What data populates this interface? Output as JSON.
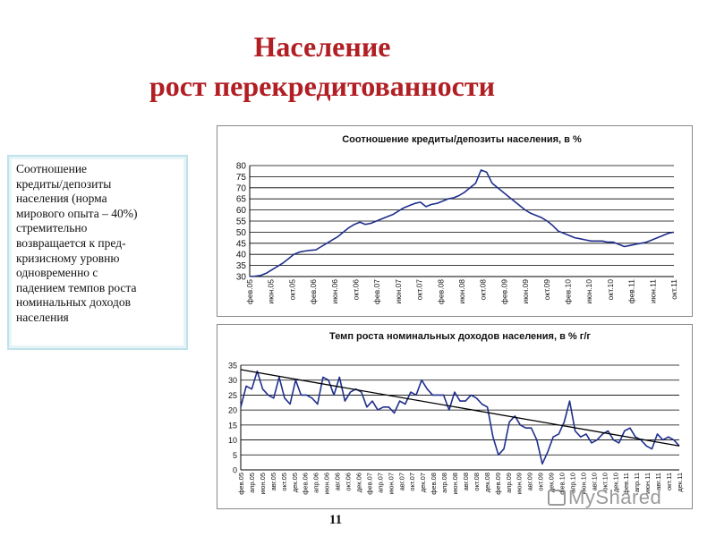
{
  "header": {
    "title_line1": "Население",
    "title_line2": "рост перекредитованности"
  },
  "textbox": {
    "text": "Соотношение\nкредиты/депозиты\nнаселения (норма\nмирового опыта – 40%)\nстремительно\nвозвращается к пред-\nкризисному уровню\nодновременно с\nпадением темпов роста\nноминальных доходов\nнаселения"
  },
  "footer": {
    "page_number": "11",
    "watermark": "MyShared"
  },
  "colors": {
    "title": "#b11f24",
    "series": "#1f2f8c",
    "trend": "#000000",
    "grid": "#000000"
  },
  "chart_data": [
    {
      "type": "line",
      "title": "Соотношение кредиты/депозиты населения, в %",
      "ylim": [
        30,
        80
      ],
      "yticks": [
        30,
        35,
        40,
        45,
        50,
        55,
        60,
        65,
        70,
        75,
        80
      ],
      "grid": "horizontal",
      "x_labels": [
        "фев.05",
        "июн.05",
        "окт.05",
        "фев.06",
        "июн.06",
        "окт.06",
        "фев.07",
        "июн.07",
        "окт.07",
        "фев.08",
        "июн.08",
        "окт.08",
        "фев.09",
        "июн.09",
        "окт.09",
        "фев.10",
        "июн.10",
        "окт.10",
        "фев.11",
        "июн.11",
        "окт.11"
      ],
      "series": [
        {
          "values": [
            30,
            30.2,
            30.5,
            31.5,
            33,
            34.5,
            36,
            38,
            40,
            41,
            41.5,
            41.8,
            42,
            43.5,
            45,
            46.5,
            48,
            50,
            52,
            53.5,
            54.5,
            53.5,
            54,
            55,
            56,
            57,
            58,
            59.5,
            61,
            62,
            63,
            63.5,
            61.5,
            62.5,
            63,
            64,
            65,
            65.5,
            66.5,
            68,
            70,
            72,
            78,
            77,
            72,
            70,
            68,
            66,
            64,
            62,
            60,
            58.5,
            57.5,
            56.5,
            55,
            53,
            50.5,
            49.5,
            48.5,
            47.5,
            47,
            46.5,
            46,
            46,
            46,
            45.5,
            45.5,
            44.5,
            43.5,
            44,
            44.5,
            45,
            45.5,
            46.5,
            47.5,
            48.5,
            49.5,
            50
          ]
        }
      ]
    },
    {
      "type": "line",
      "title": "Темп роста номинальных доходов населения, в % г/г",
      "ylim": [
        0,
        35
      ],
      "yticks": [
        0,
        5,
        10,
        15,
        20,
        25,
        30,
        35
      ],
      "grid": "horizontal",
      "x_labels": [
        "фев.05",
        "апр.05",
        "июн.05",
        "авг.05",
        "окт.05",
        "дек.05",
        "фев.06",
        "апр.06",
        "июн.06",
        "авг.06",
        "окт.06",
        "дек.06",
        "фев.07",
        "апр.07",
        "июн.07",
        "авг.07",
        "окт.07",
        "дек.07",
        "фев.08",
        "апр.08",
        "июн.08",
        "авг.08",
        "окт.08",
        "дек.08",
        "фев.09",
        "апр.09",
        "июн.09",
        "авг.09",
        "окт.09",
        "дек.09",
        "фев.10",
        "апр.10",
        "июн.10",
        "авг.10",
        "окт.10",
        "дек.10",
        "фев.11",
        "апр.11",
        "июн.11",
        "авг.11",
        "окт.11",
        "дек.11"
      ],
      "series": [
        {
          "values": [
            21,
            28,
            27,
            33,
            27,
            25,
            24,
            31,
            24,
            22,
            30,
            25,
            25,
            24,
            22,
            31,
            30,
            25,
            31,
            23,
            26,
            27,
            26,
            21,
            23,
            20,
            21,
            21,
            19,
            23,
            22,
            26,
            25,
            30,
            27,
            25,
            25,
            25,
            20,
            26,
            23,
            23,
            25,
            24,
            22,
            21,
            11,
            5,
            7,
            16,
            18,
            15,
            14,
            14,
            10,
            2,
            6,
            11,
            12,
            16,
            23,
            13,
            11,
            12,
            9,
            10,
            12,
            13,
            10,
            9,
            13,
            14,
            11,
            10,
            8,
            7,
            12,
            10,
            11,
            10,
            8
          ]
        },
        {
          "values": [
            33.5,
            8
          ]
        }
      ]
    }
  ]
}
